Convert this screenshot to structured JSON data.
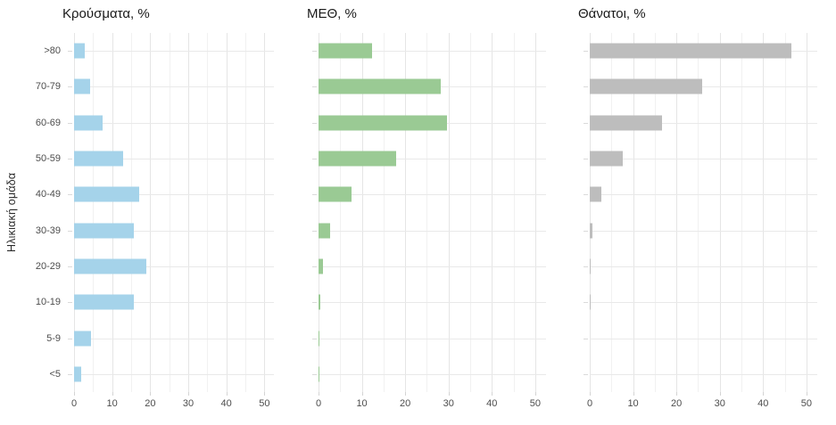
{
  "figure": {
    "background": "#ffffff",
    "grid_major_color": "#e5e5e5",
    "grid_minor_color": "#f1f1f1",
    "axis_text_color": "#4d4d4d",
    "title_color": "#1a1a1a"
  },
  "chart_data": {
    "type": "bar",
    "orientation": "horizontal",
    "ylabel": "Ηλικιακή ομάδα",
    "categories": [
      ">80",
      "70-79",
      "60-69",
      "50-59",
      "40-49",
      "30-39",
      "20-29",
      "10-19",
      "5-9",
      "<5"
    ],
    "x_ticks": [
      0,
      10,
      20,
      30,
      40,
      50
    ],
    "xlim": [
      0,
      52.5
    ],
    "grid": "vertical major every 10, minor every 5; horizontal line per category; no legend",
    "series": [
      {
        "name": "Κρούσματα, %",
        "color": "#a5d3ea",
        "values": [
          2.8,
          4.2,
          7.4,
          13.0,
          17.0,
          15.8,
          19.1,
          15.7,
          4.4,
          1.8
        ]
      },
      {
        "name": "ΜΕΘ, %",
        "color": "#9aca94",
        "values": [
          12.3,
          28.3,
          29.7,
          18.0,
          7.7,
          2.6,
          1.0,
          0.5,
          0.15,
          0.2
        ]
      },
      {
        "name": "Θάνατοι, %",
        "color": "#bdbdbd",
        "values": [
          46.5,
          26.0,
          16.7,
          7.6,
          2.6,
          0.7,
          0.1,
          0.1,
          0,
          0
        ]
      }
    ]
  }
}
